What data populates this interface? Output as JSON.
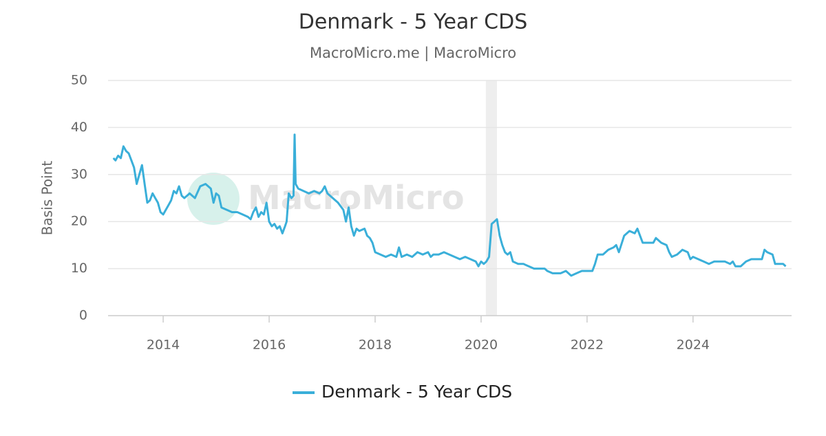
{
  "chart_data": {
    "type": "line",
    "title": "Denmark - 5 Year CDS",
    "subtitle": "MacroMicro.me | MacroMicro",
    "watermark": "MacroMicro",
    "y_label": "Basis Point",
    "xlim": [
      2012.96,
      2025.86
    ],
    "xticks": [
      2014,
      2016,
      2018,
      2020,
      2022,
      2024
    ],
    "ylim": [
      0,
      50
    ],
    "yticks": [
      0,
      10,
      20,
      30,
      40,
      50
    ],
    "grid": true,
    "legend": "bottom",
    "shaded_regions": [
      [
        2020.09,
        2020.3
      ]
    ],
    "series": [
      {
        "name": "Denmark - 5 Year CDS",
        "color": "#3aafd9",
        "x": [
          2013.06,
          2013.1,
          2013.15,
          2013.2,
          2013.25,
          2013.3,
          2013.35,
          2013.4,
          2013.45,
          2013.5,
          2013.55,
          2013.6,
          2013.65,
          2013.7,
          2013.75,
          2013.8,
          2013.85,
          2013.9,
          2013.95,
          2014.0,
          2014.05,
          2014.1,
          2014.15,
          2014.2,
          2014.25,
          2014.3,
          2014.35,
          2014.4,
          2014.5,
          2014.6,
          2014.7,
          2014.8,
          2014.9,
          2014.95,
          2015.0,
          2015.05,
          2015.1,
          2015.2,
          2015.3,
          2015.4,
          2015.5,
          2015.6,
          2015.65,
          2015.7,
          2015.75,
          2015.8,
          2015.85,
          2015.9,
          2015.95,
          2016.0,
          2016.05,
          2016.1,
          2016.15,
          2016.2,
          2016.25,
          2016.3,
          2016.33,
          2016.37,
          2016.42,
          2016.46,
          2016.48,
          2016.5,
          2016.55,
          2016.65,
          2016.75,
          2016.85,
          2016.95,
          2017.0,
          2017.05,
          2017.1,
          2017.2,
          2017.3,
          2017.4,
          2017.45,
          2017.5,
          2017.55,
          2017.6,
          2017.65,
          2017.7,
          2017.8,
          2017.85,
          2017.9,
          2017.95,
          2018.0,
          2018.1,
          2018.2,
          2018.3,
          2018.4,
          2018.45,
          2018.5,
          2018.6,
          2018.7,
          2018.8,
          2018.9,
          2019.0,
          2019.05,
          2019.1,
          2019.2,
          2019.3,
          2019.4,
          2019.5,
          2019.6,
          2019.7,
          2019.8,
          2019.9,
          2019.95,
          2020.0,
          2020.05,
          2020.1,
          2020.15,
          2020.2,
          2020.25,
          2020.3,
          2020.35,
          2020.4,
          2020.45,
          2020.5,
          2020.55,
          2020.6,
          2020.7,
          2020.8,
          2020.9,
          2021.0,
          2021.1,
          2021.2,
          2021.25,
          2021.35,
          2021.5,
          2021.6,
          2021.7,
          2021.8,
          2021.9,
          2022.0,
          2022.1,
          2022.15,
          2022.2,
          2022.3,
          2022.4,
          2022.5,
          2022.55,
          2022.6,
          2022.7,
          2022.8,
          2022.9,
          2022.95,
          2023.0,
          2023.05,
          2023.15,
          2023.25,
          2023.3,
          2023.4,
          2023.5,
          2023.55,
          2023.6,
          2023.7,
          2023.8,
          2023.9,
          2023.95,
          2024.0,
          2024.1,
          2024.2,
          2024.3,
          2024.4,
          2024.5,
          2024.6,
          2024.7,
          2024.75,
          2024.8,
          2024.9,
          2025.0,
          2025.1,
          2025.2,
          2025.3,
          2025.35,
          2025.4,
          2025.5,
          2025.55,
          2025.7,
          2025.75
        ],
        "values": [
          33.5,
          33,
          34,
          33.5,
          36,
          35,
          34.5,
          33,
          31.5,
          28,
          30,
          32,
          28,
          24,
          24.5,
          26,
          25,
          24,
          22,
          21.5,
          22.5,
          23.5,
          24.5,
          26.5,
          26,
          27.5,
          25.5,
          25,
          26,
          25,
          27.5,
          28,
          27,
          24,
          26,
          25.5,
          23,
          22.5,
          22,
          22,
          21.5,
          21,
          20.5,
          22,
          23,
          21,
          22,
          21.5,
          24,
          20,
          19,
          19.5,
          18.5,
          19,
          17.5,
          19,
          20,
          26,
          25,
          25.5,
          38.5,
          28,
          27,
          26.5,
          26,
          26.5,
          26,
          26.5,
          27.5,
          26,
          25,
          24,
          22.5,
          20,
          23,
          19,
          17,
          18.5,
          18,
          18.5,
          17,
          16.5,
          15.5,
          13.5,
          13,
          12.5,
          13,
          12.5,
          14.5,
          12.5,
          13,
          12.5,
          13.5,
          13,
          13.5,
          12.5,
          13,
          13,
          13.5,
          13,
          12.5,
          12,
          12.5,
          12,
          11.5,
          10.5,
          11.5,
          11,
          11.5,
          12.5,
          19.5,
          20,
          20.5,
          17,
          15,
          13.5,
          13,
          13.5,
          11.5,
          11,
          11,
          10.5,
          10,
          10,
          10,
          9.5,
          9,
          9,
          9.5,
          8.5,
          9,
          9.5,
          9.5,
          9.5,
          11,
          13,
          13,
          14,
          14.5,
          15,
          13.5,
          17,
          18,
          17.5,
          18.5,
          17,
          15.5,
          15.5,
          15.5,
          16.5,
          15.5,
          15,
          13.5,
          12.5,
          13,
          14,
          13.5,
          12,
          12.5,
          12,
          11.5,
          11,
          11.5,
          11.5,
          11.5,
          11,
          11.5,
          10.5,
          10.5,
          11.5,
          12,
          12,
          12,
          14,
          13.5,
          13,
          11,
          11,
          10.5
        ]
      }
    ]
  }
}
